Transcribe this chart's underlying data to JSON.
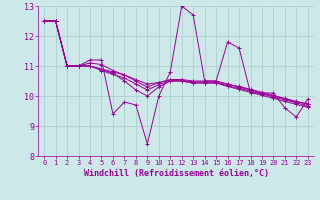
{
  "xlabel": "Windchill (Refroidissement éolien,°C)",
  "background_color": "#cce8e8",
  "line_color": "#990099",
  "grid_color": "#aacccc",
  "ylim": [
    8,
    13
  ],
  "xlim": [
    -0.5,
    23.5
  ],
  "yticks": [
    8,
    9,
    10,
    11,
    12,
    13
  ],
  "xticks": [
    0,
    1,
    2,
    3,
    4,
    5,
    6,
    7,
    8,
    9,
    10,
    11,
    12,
    13,
    14,
    15,
    16,
    17,
    18,
    19,
    20,
    21,
    22,
    23
  ],
  "series": [
    [
      12.5,
      12.5,
      11.0,
      11.0,
      11.2,
      11.2,
      9.4,
      9.8,
      9.7,
      8.4,
      10.0,
      10.8,
      13.0,
      12.7,
      10.5,
      10.5,
      11.8,
      11.6,
      10.1,
      10.1,
      10.1,
      9.6,
      9.3,
      9.9
    ],
    [
      12.5,
      12.5,
      11.0,
      11.0,
      11.1,
      11.05,
      10.85,
      10.7,
      10.5,
      10.3,
      10.45,
      10.55,
      10.55,
      10.5,
      10.5,
      10.5,
      10.4,
      10.3,
      10.2,
      10.1,
      10.0,
      9.9,
      9.8,
      9.75
    ],
    [
      12.5,
      12.5,
      11.0,
      11.0,
      11.0,
      10.9,
      10.8,
      10.7,
      10.55,
      10.4,
      10.45,
      10.52,
      10.52,
      10.47,
      10.47,
      10.47,
      10.38,
      10.32,
      10.22,
      10.12,
      10.02,
      9.92,
      9.82,
      9.72
    ],
    [
      12.5,
      12.5,
      11.0,
      11.0,
      11.0,
      10.88,
      10.76,
      10.5,
      10.2,
      10.0,
      10.3,
      10.5,
      10.5,
      10.43,
      10.43,
      10.43,
      10.32,
      10.22,
      10.12,
      10.02,
      9.92,
      9.82,
      9.72,
      9.62
    ],
    [
      12.5,
      12.5,
      11.0,
      11.0,
      11.0,
      10.85,
      10.72,
      10.6,
      10.4,
      10.2,
      10.38,
      10.5,
      10.5,
      10.44,
      10.44,
      10.44,
      10.34,
      10.26,
      10.16,
      10.06,
      9.97,
      9.87,
      9.77,
      9.67
    ]
  ]
}
